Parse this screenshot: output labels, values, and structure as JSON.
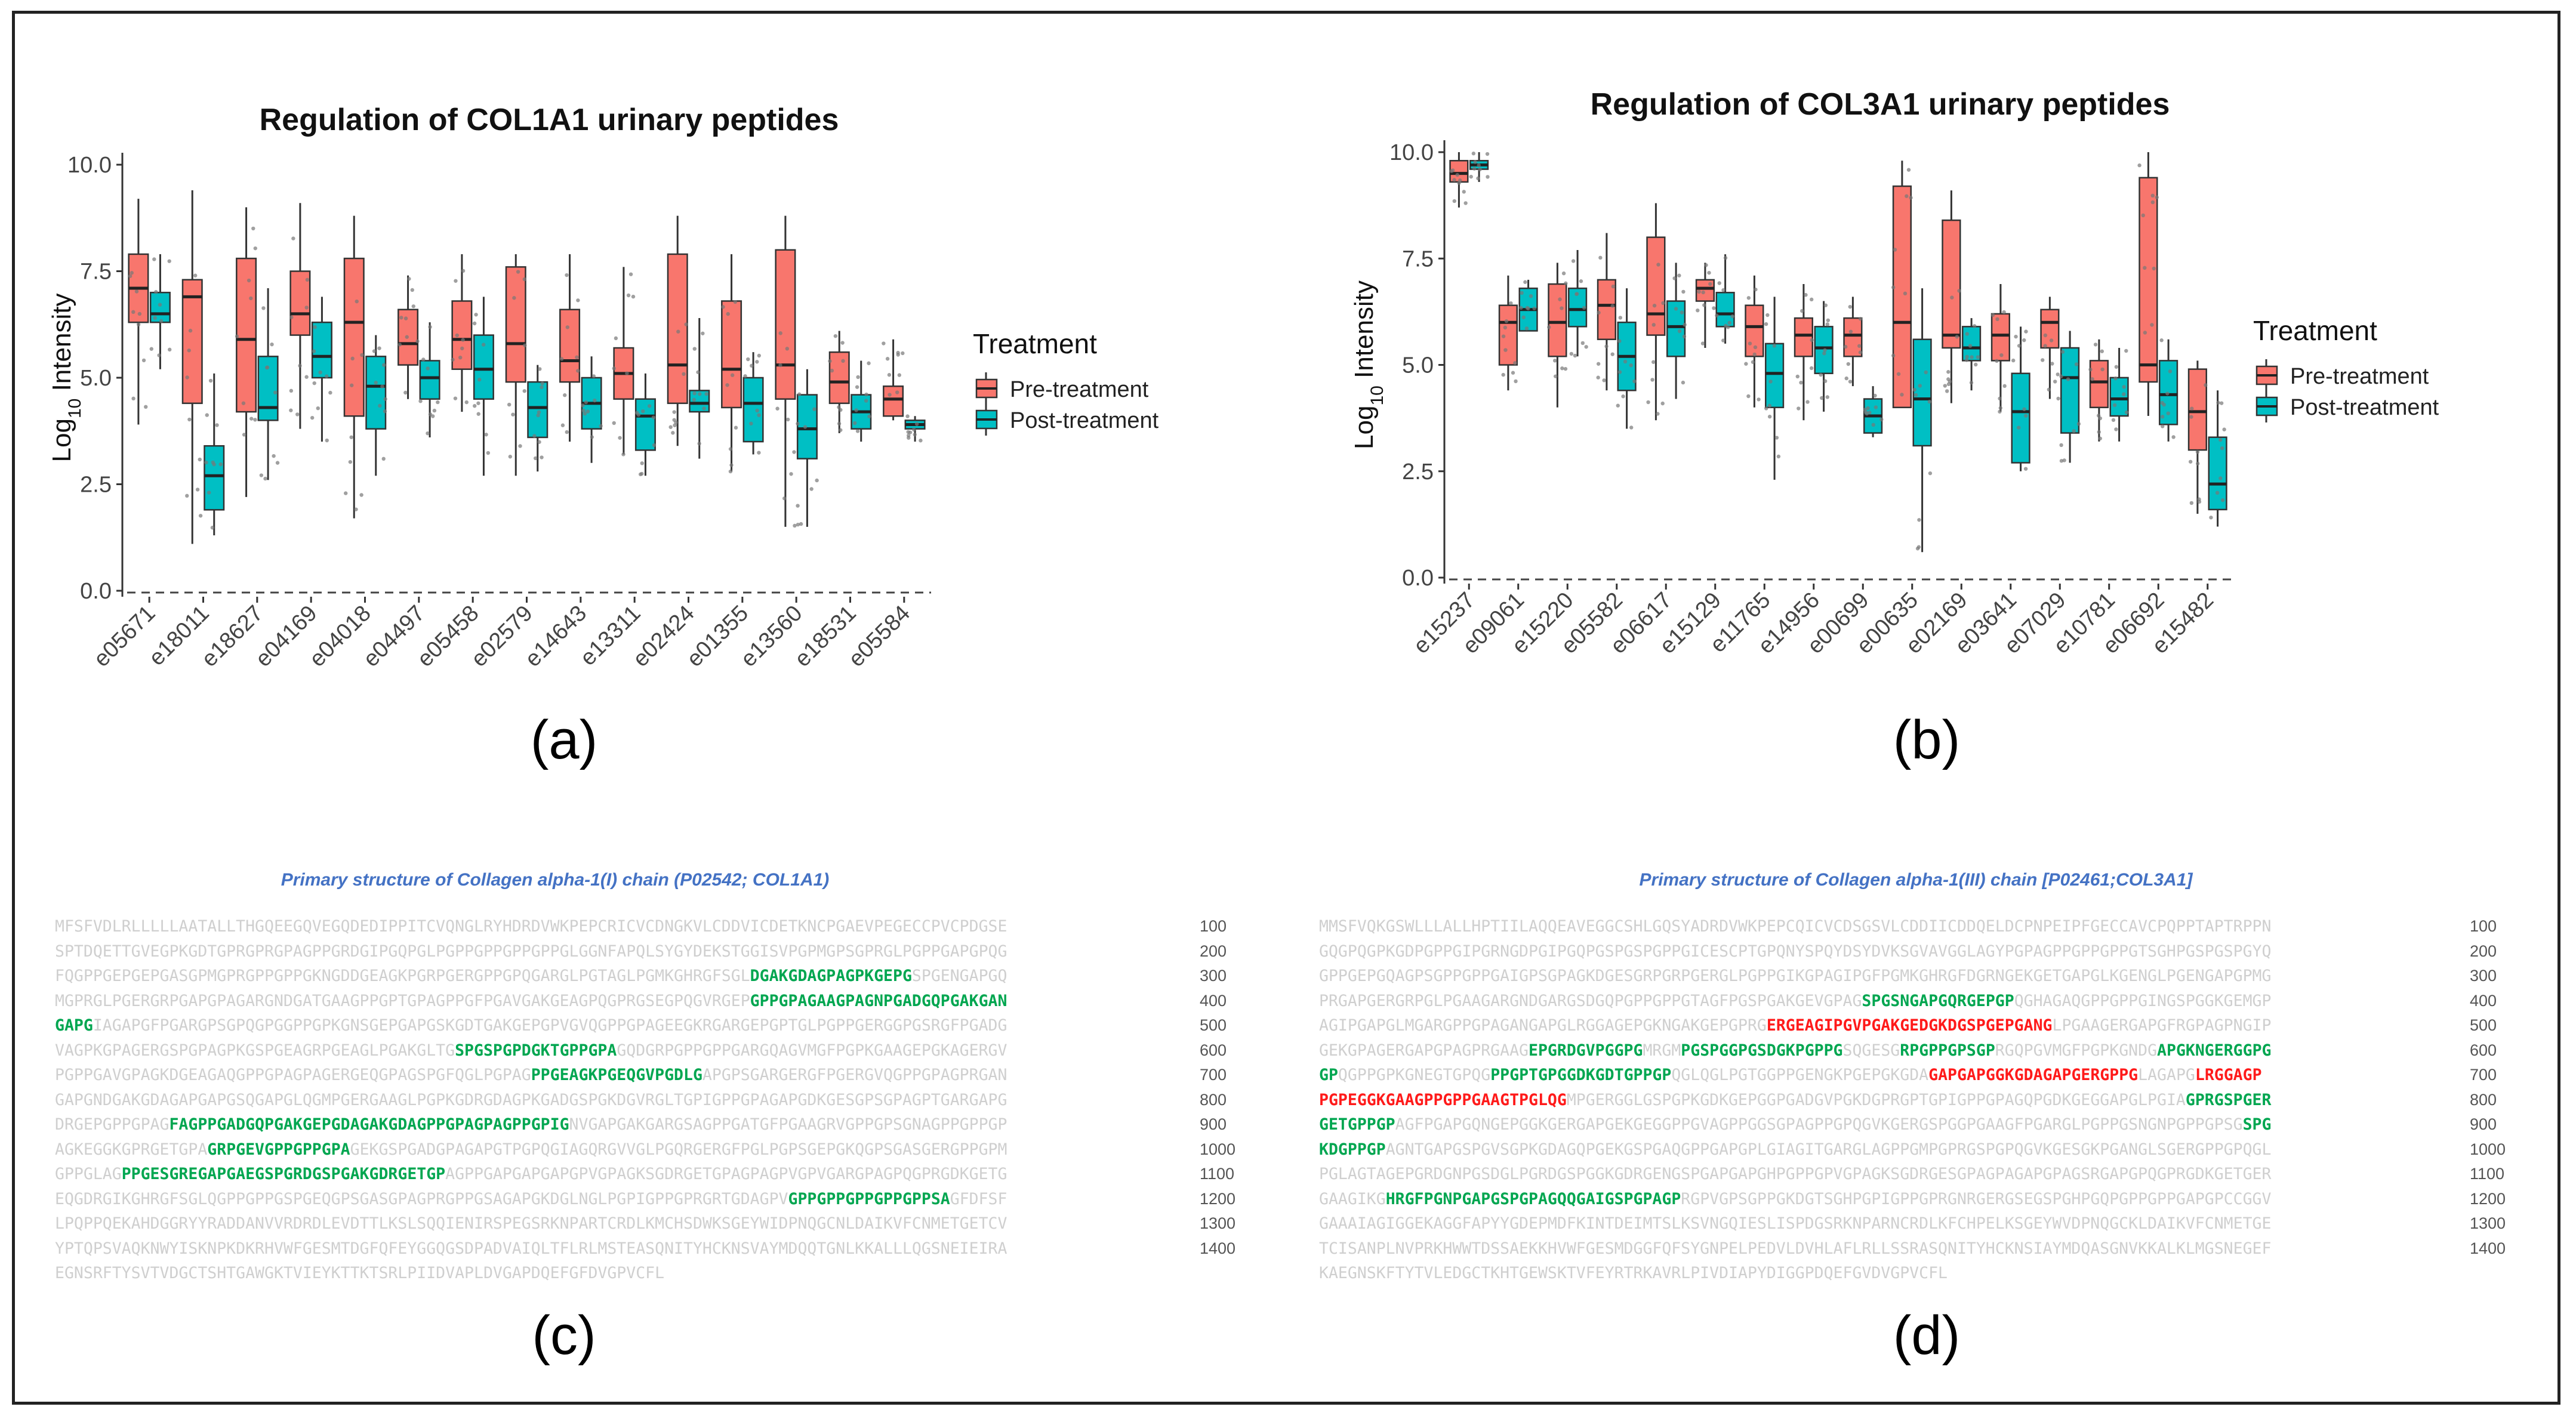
{
  "colors": {
    "pre": "#f8766d",
    "post": "#00bfc4",
    "highlight_green": "#00a650",
    "highlight_red": "#ff1a1a",
    "seq_title": "#4472c4",
    "seq_text": "#cfcfcf"
  },
  "panel_labels": [
    "(a)",
    "(b)",
    "(c)",
    "(d)"
  ],
  "chart_data": [
    {
      "type": "box",
      "title": "Regulation of COL1A1 urinary peptides",
      "ylabel_prefix": "Log",
      "ylabel_sub": "10",
      "ylabel_suffix": " Intensity",
      "xlabel": "",
      "ylim": [
        0,
        10
      ],
      "yticks": [
        "0.0",
        "2.5",
        "5.0",
        "7.5",
        "10.0"
      ],
      "legend": {
        "title": "Treatment",
        "entries": [
          "Pre-treatment",
          "Post-treatment"
        ],
        "position": "right"
      },
      "categories": [
        "e05671",
        "e18011",
        "e18627",
        "e04169",
        "e04018",
        "e04497",
        "e05458",
        "e02579",
        "e14643",
        "e13311",
        "e02424",
        "e01355",
        "e13560",
        "e18531",
        "e05584"
      ],
      "series": [
        {
          "name": "Pre-treatment",
          "boxes": [
            [
              3.9,
              6.3,
              7.1,
              7.9,
              9.2
            ],
            [
              1.1,
              4.4,
              6.9,
              7.3,
              9.4
            ],
            [
              2.2,
              4.2,
              5.9,
              7.8,
              9.0
            ],
            [
              3.8,
              6.0,
              6.5,
              7.5,
              9.1
            ],
            [
              1.7,
              4.1,
              6.3,
              7.8,
              8.8
            ],
            [
              4.5,
              5.3,
              5.8,
              6.6,
              7.4
            ],
            [
              4.2,
              5.2,
              5.9,
              6.8,
              7.9
            ],
            [
              2.7,
              4.9,
              5.8,
              7.6,
              7.9
            ],
            [
              3.5,
              4.9,
              5.4,
              6.6,
              7.9
            ],
            [
              3.2,
              4.5,
              5.1,
              5.7,
              7.6
            ],
            [
              3.4,
              4.4,
              5.3,
              7.9,
              8.8
            ],
            [
              2.8,
              4.3,
              5.2,
              6.8,
              7.9
            ],
            [
              1.5,
              4.5,
              5.3,
              8.0,
              8.8
            ],
            [
              3.7,
              4.4,
              4.9,
              5.6,
              6.1
            ],
            [
              4.0,
              4.1,
              4.5,
              4.8,
              5.9
            ]
          ]
        },
        {
          "name": "Post-treatment",
          "boxes": [
            [
              5.2,
              6.3,
              6.5,
              7.0,
              7.9
            ],
            [
              1.3,
              1.9,
              2.7,
              3.4,
              5.1
            ],
            [
              2.6,
              4.0,
              4.3,
              5.5,
              7.1
            ],
            [
              3.5,
              5.0,
              5.5,
              6.3,
              6.9
            ],
            [
              2.7,
              3.8,
              4.8,
              5.5,
              6.0
            ],
            [
              3.6,
              4.5,
              5.0,
              5.4,
              6.3
            ],
            [
              2.7,
              4.5,
              5.2,
              6.0,
              6.9
            ],
            [
              2.8,
              3.6,
              4.3,
              4.9,
              5.3
            ],
            [
              3.0,
              3.8,
              4.4,
              5.0,
              5.5
            ],
            [
              2.7,
              3.3,
              4.1,
              4.5,
              5.1
            ],
            [
              3.1,
              4.2,
              4.4,
              4.7,
              6.4
            ],
            [
              3.2,
              3.5,
              4.4,
              5.0,
              5.6
            ],
            [
              1.5,
              3.1,
              3.8,
              4.6,
              5.2
            ],
            [
              3.5,
              3.8,
              4.2,
              4.6,
              5.4
            ],
            [
              3.5,
              3.8,
              3.9,
              4.0,
              4.1
            ]
          ]
        }
      ]
    },
    {
      "type": "box",
      "title": "Regulation of COL3A1 urinary peptides",
      "ylabel_prefix": "Log",
      "ylabel_sub": "10",
      "ylabel_suffix": " Intensity",
      "xlabel": "",
      "ylim": [
        0,
        10
      ],
      "yticks": [
        "0.0",
        "2.5",
        "5.0",
        "7.5",
        "10.0"
      ],
      "legend": {
        "title": "Treatment",
        "entries": [
          "Pre-treatment",
          "Post-treatment"
        ],
        "position": "right"
      },
      "categories": [
        "e15237",
        "e09061",
        "e15220",
        "e05582",
        "e06617",
        "e15129",
        "e11765",
        "e14956",
        "e00699",
        "e00635",
        "e02169",
        "e03641",
        "e07029",
        "e10781",
        "e06692",
        "e15482"
      ],
      "series": [
        {
          "name": "Pre-treatment",
          "boxes": [
            [
              8.7,
              9.3,
              9.5,
              9.8,
              10.0
            ],
            [
              4.4,
              5.0,
              6.0,
              6.4,
              7.1
            ],
            [
              4.0,
              5.2,
              6.0,
              6.9,
              7.4
            ],
            [
              4.4,
              5.6,
              6.4,
              7.0,
              8.1
            ],
            [
              3.7,
              5.7,
              6.2,
              8.0,
              8.8
            ],
            [
              5.4,
              6.5,
              6.8,
              7.0,
              7.4
            ],
            [
              4.0,
              5.2,
              5.9,
              6.4,
              7.1
            ],
            [
              3.7,
              5.2,
              5.7,
              6.1,
              6.9
            ],
            [
              4.5,
              5.2,
              5.7,
              6.1,
              6.6
            ],
            [
              4.3,
              4.0,
              6.0,
              9.2,
              9.8
            ],
            [
              4.1,
              5.4,
              5.7,
              8.4,
              9.1
            ],
            [
              3.9,
              5.1,
              5.7,
              6.2,
              6.9
            ],
            [
              4.2,
              5.4,
              6.0,
              6.3,
              6.6
            ],
            [
              3.2,
              4.0,
              4.6,
              5.1,
              5.6
            ],
            [
              3.8,
              4.6,
              5.0,
              9.4,
              10.0
            ],
            [
              1.5,
              3.0,
              3.9,
              4.9,
              5.1
            ]
          ]
        },
        {
          "name": "Post-treatment",
          "boxes": [
            [
              9.3,
              9.6,
              9.7,
              9.8,
              10.0
            ],
            [
              5.8,
              5.8,
              6.3,
              6.8,
              7.0
            ],
            [
              5.2,
              5.9,
              6.3,
              6.8,
              7.7
            ],
            [
              3.5,
              4.4,
              5.2,
              6.0,
              6.8
            ],
            [
              4.2,
              5.2,
              5.9,
              6.5,
              7.4
            ],
            [
              5.5,
              5.9,
              6.2,
              6.7,
              7.6
            ],
            [
              2.3,
              4.0,
              4.8,
              5.5,
              6.6
            ],
            [
              3.9,
              4.8,
              5.4,
              5.9,
              6.5
            ],
            [
              3.3,
              3.4,
              3.8,
              4.2,
              4.5
            ],
            [
              0.6,
              3.1,
              4.2,
              5.6,
              6.8
            ],
            [
              4.4,
              5.1,
              5.4,
              5.9,
              6.1
            ],
            [
              2.5,
              2.7,
              3.9,
              4.8,
              5.9
            ],
            [
              2.7,
              3.4,
              4.7,
              5.4,
              5.8
            ],
            [
              3.2,
              3.8,
              4.2,
              4.7,
              5.4
            ],
            [
              3.2,
              3.6,
              4.3,
              5.1,
              5.6
            ],
            [
              1.2,
              1.6,
              2.2,
              3.3,
              4.4
            ]
          ]
        }
      ]
    }
  ],
  "sequences": [
    {
      "title": "Primary structure of Collagen alpha-1(I) chain (P02542; COL1A1)",
      "numbers": [
        "100",
        "200",
        "300",
        "400",
        "500",
        "600",
        "700",
        "800",
        "900",
        "1000",
        "1100",
        "1200",
        "1300",
        "1400"
      ],
      "lines": [
        [
          {
            "t": "MFSFVDLRLLLLLAATALLTHGQEEGQVEGQDEDIPPITCVQNGLRYHDRDVWKPEPCRICVCDNGKVLCDDVICDETKNCPGAEVPEGECCPVCPDGSE",
            "h": ""
          }
        ],
        [
          {
            "t": "SPTDQETTGVEGPKGDTGPRGPRGPAGPPGRDGIPGQPGLPGPPGPPGPPGPPGLGGNFAPQLSYGYDEKSTGGISVPGPMGPSGPRGLPGPPGAPGPQG",
            "h": ""
          }
        ],
        [
          {
            "t": "FQGPPGEPGEPGASGPMGPRGPPGPPGKNGDDGEAGKPGRPGERGPPGPQGARGLPGTAGLPGMKGHRGFSGL",
            "h": ""
          },
          {
            "t": "DGAKGDAGPAGPKGEPG",
            "h": "g"
          },
          {
            "t": "SPGENGAPGQ",
            "h": ""
          }
        ],
        [
          {
            "t": "MGPRGLPGERGRPGAPGPAGARGNDGATGAAGPPGPTGPAGPPGFPGAVGAKGEAGPQGPRGSEGPQGVRGEP",
            "h": ""
          },
          {
            "t": "GPPGPAGAAGPAGNPGADGQPGAKGAN",
            "h": "g"
          }
        ],
        [
          {
            "t": "GAPG",
            "h": "g"
          },
          {
            "t": "IAGAPGFPGARGPSGPQGPGGPPGPKGNSGEPGAPGSKGDTGAKGEPGPVGVQGPPGPAGEEGKRGARGEPGPTGLPGPPGERGGPGSRGFPGADG",
            "h": ""
          }
        ],
        [
          {
            "t": "VAGPKGPAGERGSPGPAGPKGSPGEAGRPGEAGLPGAKGLTG",
            "h": ""
          },
          {
            "t": "SPGSPGPDGKTGPPGPA",
            "h": "g"
          },
          {
            "t": "GQDGRPGPPGPPGARGQAGVMGFPGPKGAAGEPGKAGERGV",
            "h": ""
          }
        ],
        [
          {
            "t": "PGPPGAVGPAGKDGEAGAQGPPGPAGPAGERGEQGPAGSPGFQGLPGPAG",
            "h": ""
          },
          {
            "t": "PPGEAGKPGEQGVPGDLG",
            "h": "g"
          },
          {
            "t": "APGPSGARGERGFPGERGVQGPPGPAGPRGAN",
            "h": ""
          }
        ],
        [
          {
            "t": "GAPGNDGAKGDAGAPGAPGSQGAPGLQGMPGERGAAGLPGPKGDRGDAGPKGADGSPGKDGVRGLTGPIGPPGPAGAPGDKGESGPSGPAGPTGARGAPG",
            "h": ""
          }
        ],
        [
          {
            "t": "DRGEPGPPGPAG",
            "h": ""
          },
          {
            "t": "FAGPPGADGQPGAKGEPGDAGAKGDAGPPGPAGPAGPPGPIG",
            "h": "g"
          },
          {
            "t": "NVGAPGAKGARGSAGPPGATGFPGAAGRVGPPGPSGNAGPPGPPGP",
            "h": ""
          }
        ],
        [
          {
            "t": "AGKEGGKGPRGETGPA",
            "h": ""
          },
          {
            "t": "GRPGEVGPPGPPGPA",
            "h": "g"
          },
          {
            "t": "GEKGSPGADGPAGAPGTPGPQGIAGQRGVVGLPGQRGERGFPGLPGPSGEPGKQGPSGASGERGPPGPM",
            "h": ""
          }
        ],
        [
          {
            "t": "GPPGLAG",
            "h": ""
          },
          {
            "t": "PPGESGREGAPGAEGSPGRDGSPGAKGDRGETGP",
            "h": "g"
          },
          {
            "t": "AGPPGAPGAPGAPGPVGPAGKSGDRGETGPAGPAGPVGPVGARGPAGPQGPRGDKGETG",
            "h": ""
          }
        ],
        [
          {
            "t": "EQGDRGIKGHRGFSGLQGPPGPPGSPGEQGPSGASGPAGPRGPPGSAGAPGKDGLNGLPGPIGPPGPRGRTGDAGPV",
            "h": ""
          },
          {
            "t": "GPPGPPGPPGPPGPPSA",
            "h": "g"
          },
          {
            "t": "GFDFSF",
            "h": ""
          }
        ],
        [
          {
            "t": "LPQPPQEKAHDGGRYYRADDANVVRDRDLEVDTTLKSLSQQIENIRSPEGSRKNPARTCRDLKMCHSDWKSGEYWIDPNQGCNLDAIKVFCNMETGETCV",
            "h": ""
          }
        ],
        [
          {
            "t": "YPTQPSVAQKNWYISKNPKDKRHVWFGESMTDGFQFEYGGQGSDPADVAIQLTFLRLMSTEASQNITYHCKNSVAYMDQQTGNLKKALLLQGSNEIEIRA",
            "h": ""
          }
        ],
        [
          {
            "t": "EGNSRFTYSVTVDGCTSHTGAWGKTVIEYKTTKTSRLPIIDVAPLDVGAPDQEFGFDVGPVCFL",
            "h": ""
          }
        ]
      ]
    },
    {
      "title": "Primary structure of Collagen alpha-1(III) chain [P02461;COL3A1]",
      "numbers": [
        "100",
        "200",
        "300",
        "400",
        "500",
        "600",
        "700",
        "800",
        "900",
        "1000",
        "1100",
        "1200",
        "1300",
        "1400"
      ],
      "lines": [
        [
          {
            "t": "MMSFVQKGSWLLLALLHPTIILAQQEAVEGGCSHLGQSYADRDVWKPEPCQICVCDSGSVLCDDIICDDQELDCPNPEIPFGECCAVCPQPPTAPTRPPN",
            "h": ""
          }
        ],
        [
          {
            "t": "GQGPQGPKGDPGPPGIPGRNGDPGIPGQPGSPGSPGPPGICESCPTGPQNYSPQYDSYDVKSGVAVGGLAGYPGPAGPPGPPGPPGTSGHPGSPGSPGYQ",
            "h": ""
          }
        ],
        [
          {
            "t": "GPPGEPGQAGPSGPPGPPGAIGPSGPAGKDGESGRPGRPGERGLPGPPGIKGPAGIPGFPGMKGHRGFDGRNGEKGETGAPGLKGENGLPGENGAPGPMG",
            "h": ""
          }
        ],
        [
          {
            "t": "PRGAPGERGRPGLPGAAGARGNDGARGSDGQPGPPGPPGTAGFPGSPGAKGEVGPAG",
            "h": ""
          },
          {
            "t": "SPGSNGAPGQRGEPGP",
            "h": "g"
          },
          {
            "t": "QGHAGAQGPPGPPGINGSPGGKGEMGP",
            "h": ""
          }
        ],
        [
          {
            "t": "AGIPGAPGLMGARGPPGPAGANGAPGLRGGAGEPGKNGAKGEPGPRG",
            "h": ""
          },
          {
            "t": "ERGEAGIPGVPGAKGEDGKDGSPGEPGANG",
            "h": "r"
          },
          {
            "t": "LPGAAGERGAPGFRGPAGPNGIP",
            "h": ""
          }
        ],
        [
          {
            "t": "GEKGPAGERGAPGPAGPRGAAG",
            "h": ""
          },
          {
            "t": "EPGRDGVPGGPG",
            "h": "g"
          },
          {
            "t": "MRGM",
            "h": ""
          },
          {
            "t": "PGSPGGPGSDGKPGPPG",
            "h": "g"
          },
          {
            "t": "SQGESG",
            "h": ""
          },
          {
            "t": "RPGPPGPSGP",
            "h": "g"
          },
          {
            "t": "RGQPGVMGFPGPKGNDG",
            "h": ""
          },
          {
            "t": "APGKNGERGGPG",
            "h": "g"
          }
        ],
        [
          {
            "t": "GP",
            "h": "g"
          },
          {
            "t": "QGPPGPKGNEGTGPQG",
            "h": ""
          },
          {
            "t": "PPGPTGPGGDKGDTGPPGP",
            "h": "g"
          },
          {
            "t": "QGLQGLPGTGGPPGENGKPGEPGKGDA",
            "h": ""
          },
          {
            "t": "GAPGAPGGKGDAGAPGERGPPG",
            "h": "r"
          },
          {
            "t": "LAGAPG",
            "h": ""
          },
          {
            "t": "LRGGAGP",
            "h": "r"
          }
        ],
        [
          {
            "t": "PGPEGGKGAAGPPGPPGAAGTPGLQG",
            "h": "r"
          },
          {
            "t": "MPGERGGLGSPGPKGDKGEPGGPGADGVPGKDGPRGPTGPIGPPGPAGQPGDKGEGGAPGLPGIA",
            "h": ""
          },
          {
            "t": "GPRGSPGER",
            "h": "g"
          }
        ],
        [
          {
            "t": "GETGPPGP",
            "h": "g"
          },
          {
            "t": "AGFPGAPGQNGEPGGKGERGAPGEKGEGGPPGVAGPPGGSGPAGPPGPQGVKGERGSPGGPGAAGFPGARGLPGPPGSNGNPGPPGPSG",
            "h": ""
          },
          {
            "t": "SPG",
            "h": "g"
          }
        ],
        [
          {
            "t": "KDGPPGP",
            "h": "g"
          },
          {
            "t": "AGNTGAPGSPGVSGPKGDAGQPGEKGSPGAQGPPGAPGPLGIAGITGARGLAGPPGMPGPRGSPGPQGVKGESGKPGANGLSGERGPPGPQGL",
            "h": ""
          }
        ],
        [
          {
            "t": "PGLAGTAGEPGRDGNPGSDGLPGRDGSPGGKGDRGENGSPGAPGAPGHPGPPGPVGPAGKSGDRGESGPAGPAGAPGPAGSRGAPGPQGPRGDKGETGER",
            "h": ""
          }
        ],
        [
          {
            "t": "GAAGIKG",
            "h": ""
          },
          {
            "t": "HRGFPGNPGAPGSPGPAGQQGAIGSPGPAGP",
            "h": "g"
          },
          {
            "t": "RGPVGPSGPPGKDGTSGHPGPIGPPGPRGNRGERGSEGSPGHPGQPGPPGPPGAPGPCCGGV",
            "h": ""
          }
        ],
        [
          {
            "t": "GAAAIAGIGGEKAGGFAPYYGDEPMDFKINTDEIMTSLKSVNGQIESLISPDGSRKNPARNCRDLKFCHPELKSGEYWVDPNQGCKLDAIKVFCNMETGE",
            "h": ""
          }
        ],
        [
          {
            "t": "TCISANPLNVPRKHWWTDSSAEKKHVWFGESMDGGFQFSYGNPELPEDVLDVHLAFLRLLSSRASQNITYHCKNSIAYMDQASGNVKKALKLMGSNEGEF",
            "h": ""
          }
        ],
        [
          {
            "t": "KAEGNSKFTYTVLEDGCTKHTGEWSKTVFEYRTRKAVRLPIVDIAPYDIGGPDQEFGVDVGPVCFL",
            "h": ""
          }
        ]
      ]
    }
  ]
}
